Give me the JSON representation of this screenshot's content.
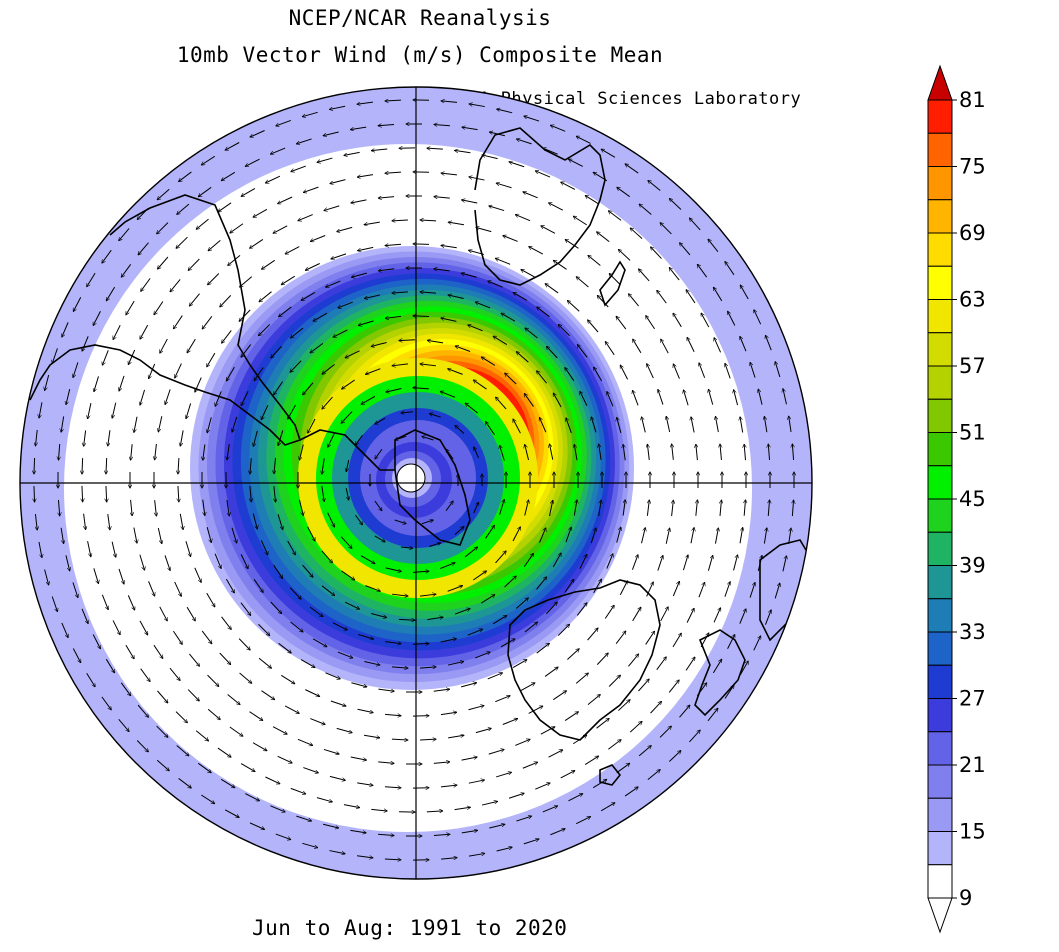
{
  "header": {
    "title": "NCEP/NCAR Reanalysis",
    "subtitle": "10mb Vector Wind (m/s) Composite Mean",
    "credit": "NOAA Physical Sciences Laboratory"
  },
  "footer": {
    "period": "Jun to Aug: 1991 to 2020"
  },
  "map": {
    "projection": "south-polar-stereographic",
    "variable": "10mb vector wind speed",
    "units": "m/s",
    "circulation": "clockwise (westerly) polar vortex",
    "jet_max_sector": "upper-right of pole",
    "arrow_glyph": "wind-vector-arrow"
  },
  "colorbar": {
    "labels": [
      "81",
      "75",
      "69",
      "63",
      "57",
      "51",
      "45",
      "39",
      "33",
      "27",
      "21",
      "15",
      "9"
    ],
    "bins": [
      {
        "lo": 9,
        "hi": 12,
        "color": "#ffffff"
      },
      {
        "lo": 12,
        "hi": 15,
        "color": "#b4b4fa"
      },
      {
        "lo": 15,
        "hi": 18,
        "color": "#9a9af5"
      },
      {
        "lo": 18,
        "hi": 21,
        "color": "#7f7fee"
      },
      {
        "lo": 21,
        "hi": 24,
        "color": "#6363e8"
      },
      {
        "lo": 24,
        "hi": 27,
        "color": "#3c3cdc"
      },
      {
        "lo": 27,
        "hi": 30,
        "color": "#1e3cd2"
      },
      {
        "lo": 30,
        "hi": 33,
        "color": "#1e64c8"
      },
      {
        "lo": 33,
        "hi": 36,
        "color": "#1e7db4"
      },
      {
        "lo": 36,
        "hi": 39,
        "color": "#1e9696"
      },
      {
        "lo": 39,
        "hi": 42,
        "color": "#1eb464"
      },
      {
        "lo": 42,
        "hi": 45,
        "color": "#1ed21e"
      },
      {
        "lo": 45,
        "hi": 48,
        "color": "#00f000"
      },
      {
        "lo": 48,
        "hi": 51,
        "color": "#3cc800"
      },
      {
        "lo": 51,
        "hi": 54,
        "color": "#82c800"
      },
      {
        "lo": 54,
        "hi": 57,
        "color": "#b4d200"
      },
      {
        "lo": 57,
        "hi": 60,
        "color": "#d2dc00"
      },
      {
        "lo": 60,
        "hi": 63,
        "color": "#f0e600"
      },
      {
        "lo": 63,
        "hi": 66,
        "color": "#ffff00"
      },
      {
        "lo": 66,
        "hi": 69,
        "color": "#ffdc00"
      },
      {
        "lo": 69,
        "hi": 72,
        "color": "#ffb400"
      },
      {
        "lo": 72,
        "hi": 75,
        "color": "#ff9600"
      },
      {
        "lo": 75,
        "hi": 78,
        "color": "#ff6400"
      },
      {
        "lo": 78,
        "hi": 81,
        "color": "#ff1e00"
      }
    ],
    "max_arrow_color": "#c80000",
    "min_arrow_color": "#ffffff"
  }
}
